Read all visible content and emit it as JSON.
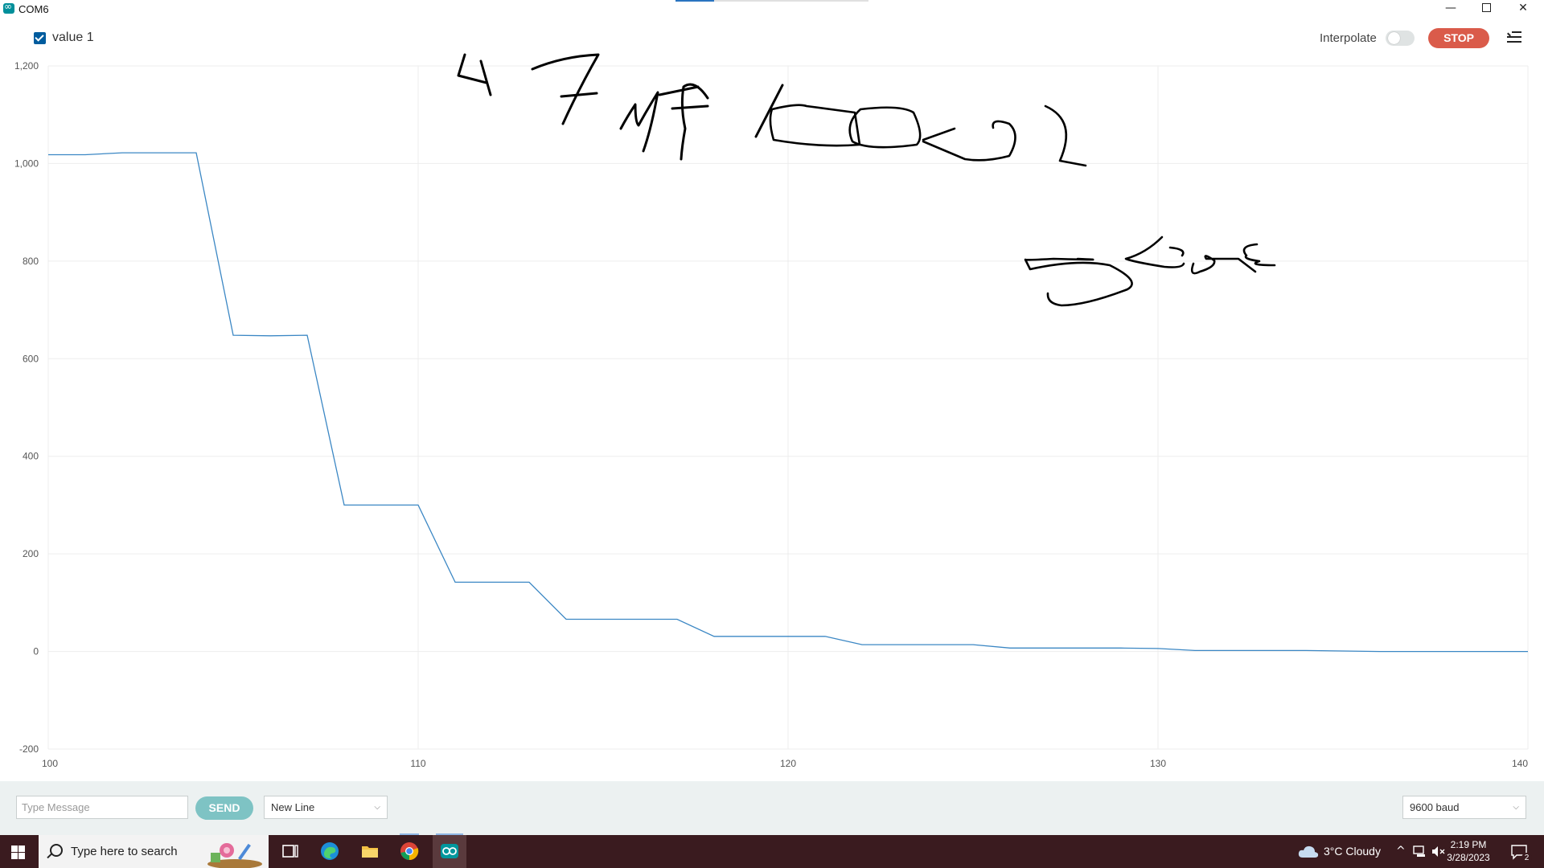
{
  "window": {
    "title": "COM6",
    "minimize_glyph": "—",
    "close_glyph": "✕"
  },
  "toolbar": {
    "legend_label": "value 1",
    "legend_checked": true,
    "interpolate_label": "Interpolate",
    "interpolate_on": false,
    "stop_label": "STOP",
    "menu_icon": "clear-lines-icon"
  },
  "chart_data": {
    "type": "line",
    "xlim": [
      100,
      140
    ],
    "ylim": [
      -200,
      1200
    ],
    "x_ticks": [
      "100",
      "110",
      "120",
      "130",
      "140"
    ],
    "y_ticks": [
      "1,200",
      "1,000",
      "800",
      "600",
      "400",
      "200",
      "0",
      "-200"
    ],
    "grid": true,
    "series": [
      {
        "name": "value 1",
        "color": "#3b87c4",
        "points": [
          [
            100,
            1018
          ],
          [
            101,
            1018
          ],
          [
            102,
            1022
          ],
          [
            103,
            1022
          ],
          [
            104,
            1022
          ],
          [
            105,
            648
          ],
          [
            106,
            647
          ],
          [
            107,
            648
          ],
          [
            108,
            300
          ],
          [
            109,
            300
          ],
          [
            110,
            300
          ],
          [
            111,
            142
          ],
          [
            112,
            142
          ],
          [
            113,
            142
          ],
          [
            114,
            66
          ],
          [
            115,
            66
          ],
          [
            116,
            66
          ],
          [
            117,
            66
          ],
          [
            118,
            31
          ],
          [
            119,
            31
          ],
          [
            120,
            31
          ],
          [
            121,
            31
          ],
          [
            122,
            14
          ],
          [
            123,
            14
          ],
          [
            124,
            14
          ],
          [
            125,
            14
          ],
          [
            126,
            7
          ],
          [
            127,
            7
          ],
          [
            128,
            7
          ],
          [
            129,
            7
          ],
          [
            130,
            6
          ],
          [
            131,
            2
          ],
          [
            132,
            2
          ],
          [
            133,
            2
          ],
          [
            134,
            2
          ],
          [
            135,
            1
          ],
          [
            136,
            0
          ],
          [
            137,
            0
          ],
          [
            138,
            0
          ],
          [
            139,
            0
          ],
          [
            140,
            0
          ]
        ]
      }
    ]
  },
  "annotation": {
    "handwriting": "47 uf 100kΩ  5sec",
    "ink_color": "#000000"
  },
  "serial": {
    "message_placeholder": "Type Message",
    "send_label": "SEND",
    "line_ending": "New Line",
    "baud": "9600 baud"
  },
  "taskbar": {
    "search_placeholder": "Type here to search",
    "weather": "3°C  Cloudy",
    "time": "2:19 PM",
    "date": "3/28/2023",
    "notifications": "2",
    "tray_chevron": "^"
  }
}
